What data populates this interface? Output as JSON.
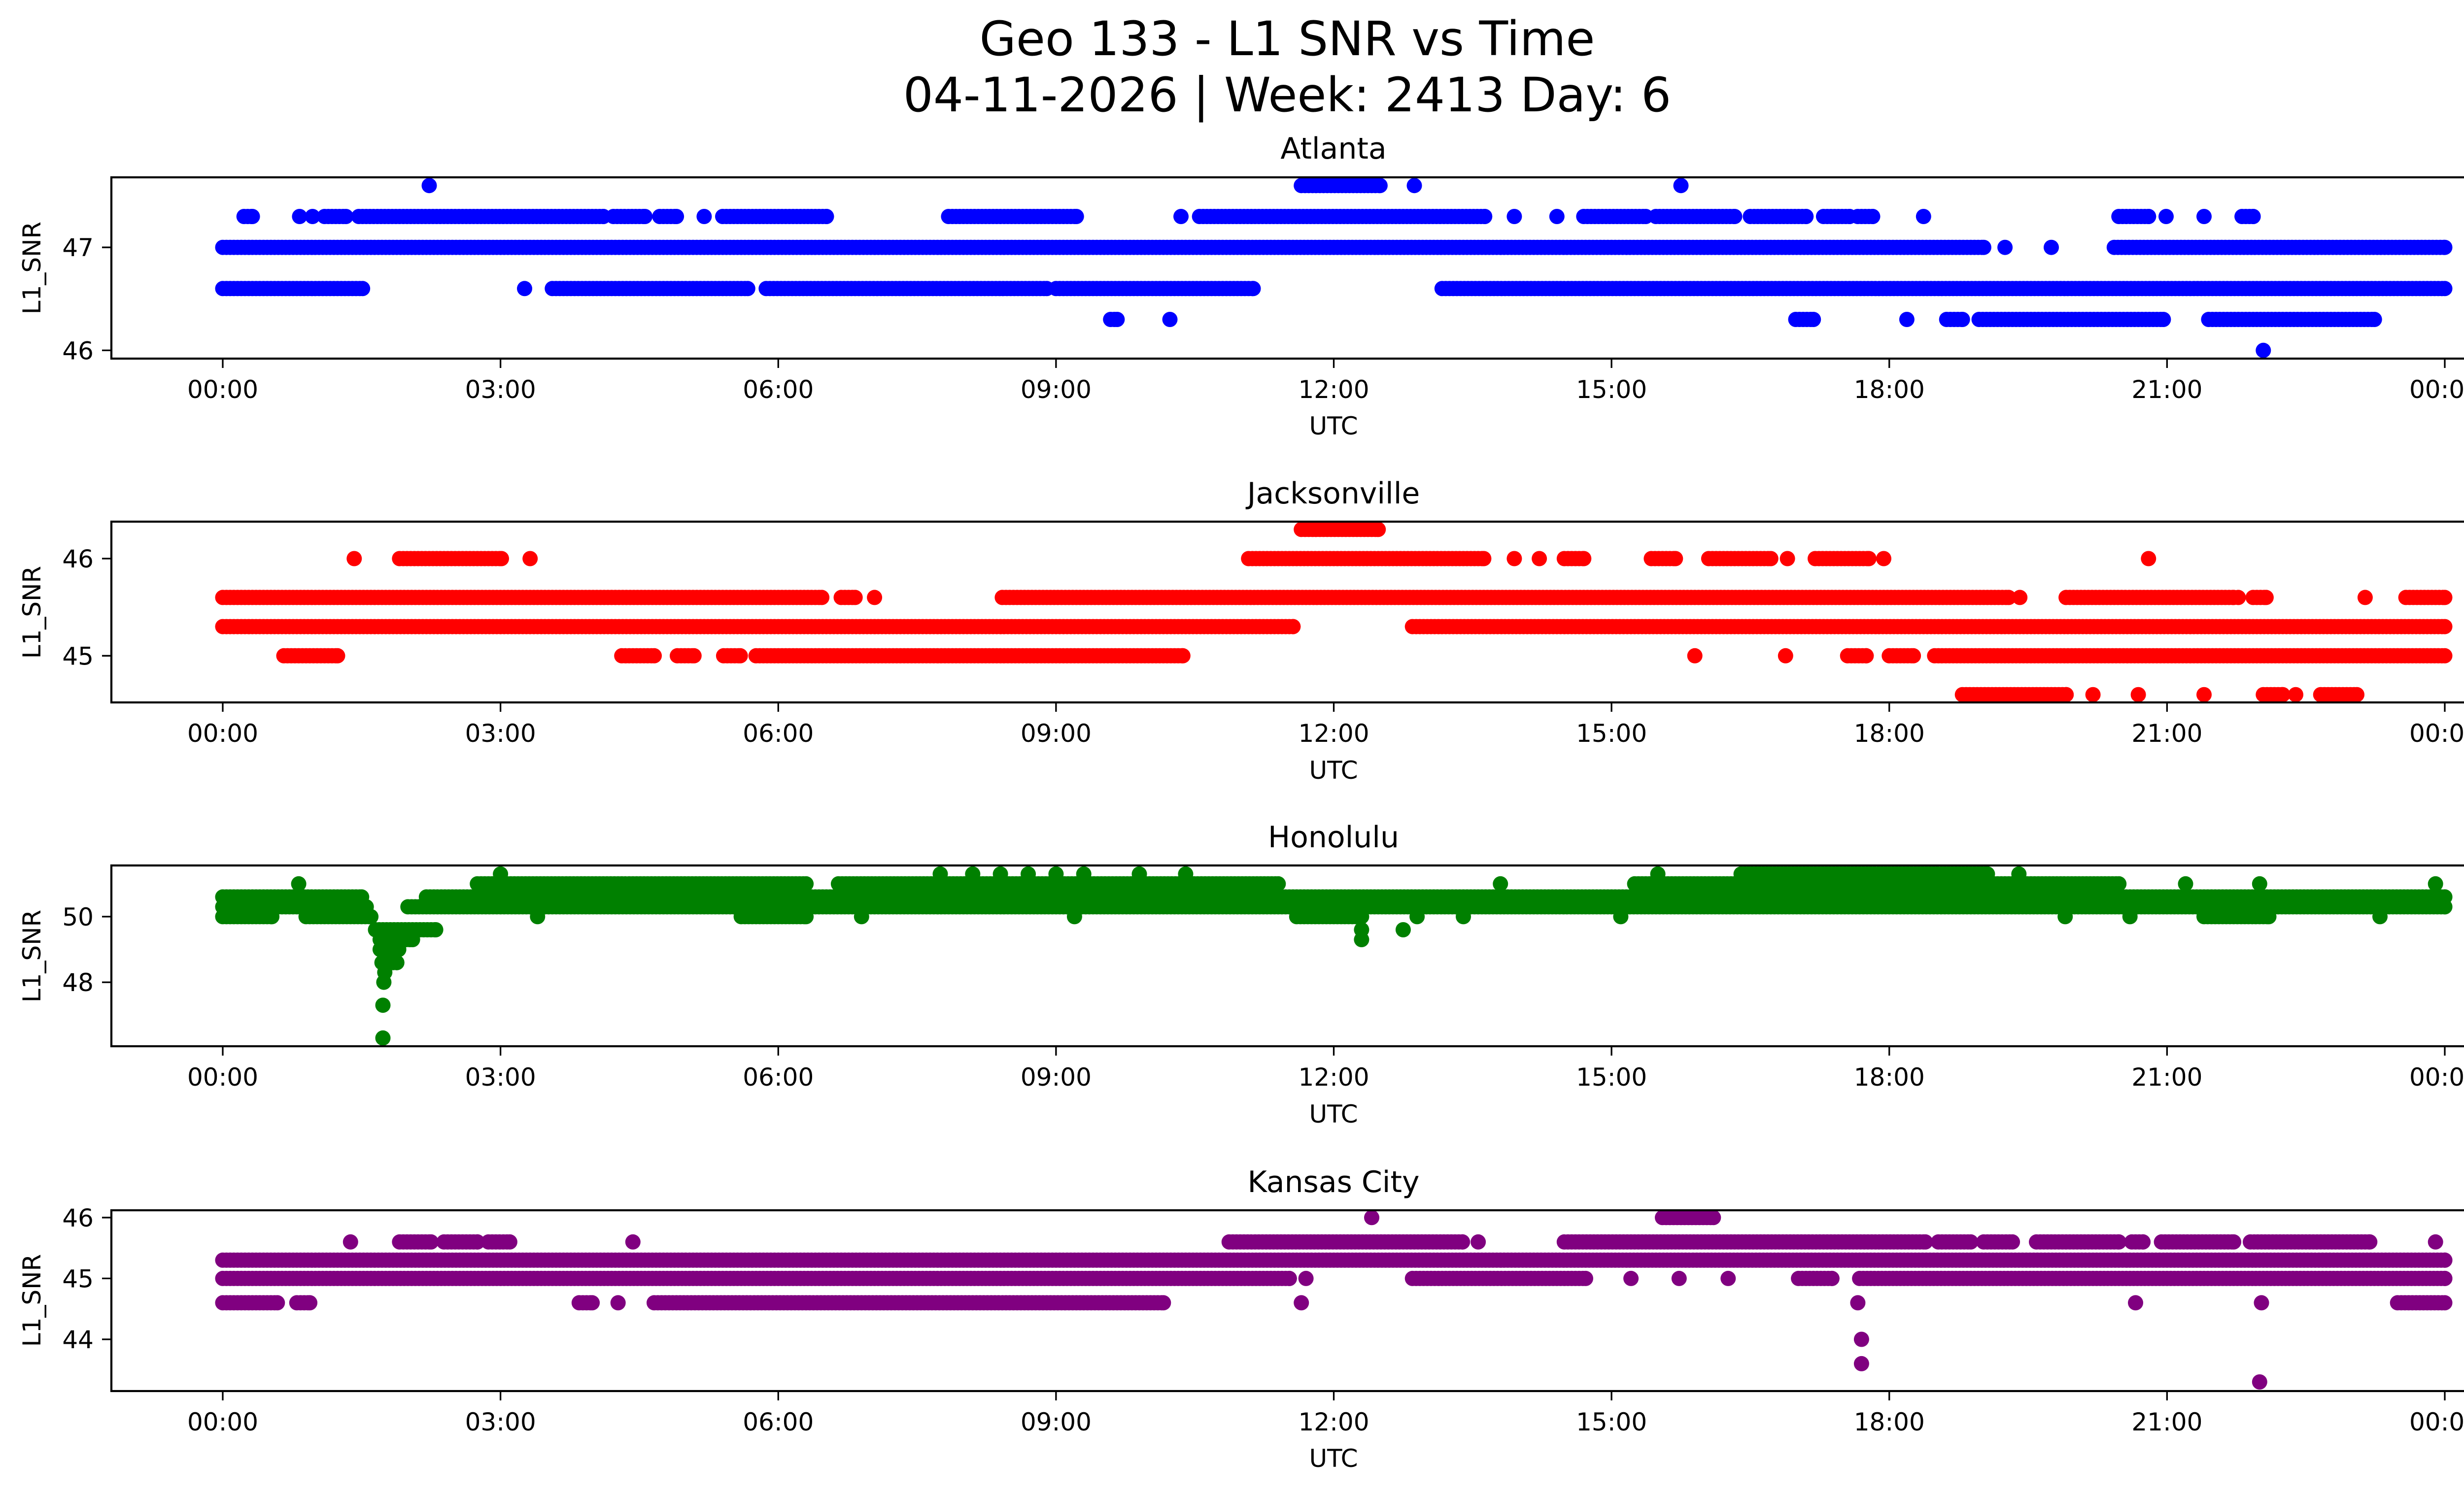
{
  "chart_data": {
    "type": "scatter",
    "title": "Geo 133 - L1 SNR vs Time",
    "subtitle": "04-11-2026 | Week: 2413 Day: 6",
    "xlabel": "UTC",
    "ylabel": "L1_SNR",
    "x_unit": "hours UTC",
    "xlim": [
      -1.2,
      25.2
    ],
    "x_ticks": [
      0,
      3,
      6,
      9,
      12,
      15,
      18,
      21,
      24
    ],
    "x_tick_labels": [
      "00:00",
      "03:00",
      "06:00",
      "09:00",
      "12:00",
      "15:00",
      "18:00",
      "21:00",
      "00:00"
    ],
    "grid": false,
    "legend": "none",
    "sample_step_hours": 0.04,
    "panels": [
      {
        "name": "Atlanta",
        "color": "#0000ff",
        "ylim": [
          45.92,
          47.68
        ],
        "y_ticks": [
          46,
          47
        ],
        "y_tick_labels": [
          "46",
          "47"
        ],
        "levels": [
          {
            "y": 47.6,
            "runs": [
              [
                11.65,
                12.5
              ]
            ],
            "points": [
              2.23,
              12.87,
              15.75
            ]
          },
          {
            "y": 47.3,
            "runs": [
              [
                0.23,
                0.32
              ],
              [
                1.1,
                1.33
              ],
              [
                1.47,
                4.11
              ],
              [
                4.22,
                4.56
              ],
              [
                4.72,
                4.9
              ],
              [
                5.4,
                6.52
              ],
              [
                7.84,
                9.22
              ],
              [
                10.55,
                13.63
              ],
              [
                14.7,
                15.37
              ],
              [
                15.48,
                16.33
              ],
              [
                16.5,
                17.1
              ],
              [
                17.29,
                17.57
              ],
              [
                17.66,
                17.82
              ],
              [
                20.48,
                20.8
              ],
              [
                21.81,
                21.93
              ]
            ],
            "points": [
              0.83,
              0.97,
              5.2,
              10.35,
              13.95,
              14.41,
              18.37,
              20.99,
              21.4
            ]
          },
          {
            "y": 47.0,
            "runs": [
              [
                0,
                19.02
              ],
              [
                20.43,
                24
              ]
            ],
            "points": [
              19.25,
              19.75
            ]
          },
          {
            "y": 46.6,
            "runs": [
              [
                0,
                1.51
              ],
              [
                3.56,
                5.67
              ],
              [
                5.87,
                8.9
              ],
              [
                9.0,
                11.13
              ],
              [
                13.17,
                24
              ]
            ],
            "points": [
              3.26
            ]
          },
          {
            "y": 46.3,
            "runs": [
              [
                9.59,
                9.66
              ],
              [
                16.99,
                17.18
              ],
              [
                18.62,
                18.79
              ],
              [
                18.97,
                20.96
              ],
              [
                21.45,
                23.24
              ]
            ],
            "points": [
              10.23,
              18.19
            ]
          },
          {
            "y": 46.0,
            "runs": [],
            "points": [
              22.04
            ]
          }
        ]
      },
      {
        "name": "Jacksonville",
        "color": "#ff0000",
        "ylim": [
          44.52,
          46.38
        ],
        "y_ticks": [
          45,
          46
        ],
        "y_tick_labels": [
          "45",
          "46"
        ],
        "levels": [
          {
            "y": 46.3,
            "runs": [
              [
                11.65,
                12.48
              ]
            ],
            "points": []
          },
          {
            "y": 46.0,
            "runs": [
              [
                1.91,
                3.01
              ],
              [
                11.08,
                13.62
              ],
              [
                14.49,
                14.7
              ],
              [
                15.43,
                15.69
              ],
              [
                16.05,
                16.72
              ],
              [
                17.2,
                17.78
              ]
            ],
            "points": [
              1.42,
              3.32,
              13.95,
              14.22,
              16.9,
              17.94,
              20.8
            ]
          },
          {
            "y": 45.6,
            "runs": [
              [
                0,
                6.47
              ],
              [
                6.68,
                6.83
              ],
              [
                8.42,
                19.29
              ],
              [
                19.91,
                21.72
              ],
              [
                21.93,
                22.07
              ],
              [
                23.58,
                24
              ]
            ],
            "points": [
              7.04,
              19.41,
              21.77,
              23.14
            ]
          },
          {
            "y": 45.3,
            "runs": [
              [
                0,
                11.56
              ],
              [
                12.85,
                24
              ]
            ],
            "points": []
          },
          {
            "y": 45.0,
            "runs": [
              [
                0.66,
                1.24
              ],
              [
                4.31,
                4.66
              ],
              [
                4.91,
                5.09
              ],
              [
                5.41,
                5.59
              ],
              [
                5.76,
                10.37
              ],
              [
                17.55,
                17.75
              ],
              [
                18.0,
                18.26
              ],
              [
                18.49,
                24
              ]
            ],
            "points": [
              15.9,
              16.88
            ]
          },
          {
            "y": 44.6,
            "runs": [
              [
                18.79,
                19.91
              ],
              [
                22.04,
                22.25
              ],
              [
                22.66,
                23.05
              ]
            ],
            "points": [
              20.2,
              20.69,
              21.4,
              22.39
            ]
          }
        ]
      },
      {
        "name": "Honolulu",
        "color": "#008000",
        "ylim": [
          46.05,
          51.56
        ],
        "y_ticks": [
          48,
          50
        ],
        "y_tick_labels": [
          "48",
          "50"
        ],
        "levels": [
          {
            "y": 51.3,
            "runs": [
              [
                16.4,
                19.06
              ]
            ],
            "points": [
              3.0,
              7.75,
              8.1,
              8.4,
              8.7,
              9.0,
              9.3,
              9.9,
              10.4,
              15.5,
              19.4
            ]
          },
          {
            "y": 51.0,
            "runs": [
              [
                2.75,
                6.3
              ],
              [
                6.65,
                11.4
              ],
              [
                15.25,
                20.48
              ]
            ],
            "points": [
              0.82,
              13.8,
              21.2,
              22.0,
              23.9
            ]
          },
          {
            "y": 50.6,
            "runs": [
              [
                0,
                1.5
              ],
              [
                2.2,
                24
              ]
            ],
            "points": []
          },
          {
            "y": 50.3,
            "runs": [
              [
                0,
                1.55
              ],
              [
                2.0,
                24
              ]
            ],
            "points": []
          },
          {
            "y": 50.0,
            "runs": [
              [
                0,
                0.53
              ],
              [
                0.9,
                1.6
              ],
              [
                5.6,
                6.3
              ],
              [
                11.6,
                12.3
              ],
              [
                21.4,
                22.1
              ]
            ],
            "points": [
              3.4,
              6.9,
              9.2,
              12.9,
              13.4,
              15.1,
              19.9,
              20.6,
              23.3
            ]
          },
          {
            "y": 49.6,
            "runs": [
              [
                1.65,
                2.3
              ]
            ],
            "points": [
              12.3,
              12.75
            ]
          },
          {
            "y": 49.3,
            "runs": [
              [
                1.7,
                2.05
              ]
            ],
            "points": [
              12.3
            ]
          },
          {
            "y": 49.0,
            "runs": [
              [
                1.7,
                1.9
              ]
            ],
            "points": []
          },
          {
            "y": 48.6,
            "runs": [
              [
                1.72,
                1.88
              ]
            ],
            "points": []
          },
          {
            "y": 48.3,
            "runs": [],
            "points": [
              1.75
            ]
          },
          {
            "y": 48.0,
            "runs": [],
            "points": [
              1.74
            ]
          },
          {
            "y": 47.3,
            "runs": [],
            "points": [
              1.73
            ]
          },
          {
            "y": 46.3,
            "runs": [],
            "points": [
              1.73
            ]
          }
        ]
      },
      {
        "name": "Kansas City",
        "color": "#800080",
        "ylim": [
          43.15,
          46.12
        ],
        "y_ticks": [
          44,
          45,
          46
        ],
        "y_tick_labels": [
          "44",
          "45",
          "46"
        ],
        "levels": [
          {
            "y": 46.0,
            "runs": [
              [
                15.55,
                16.1
              ]
            ],
            "points": [
              12.41
            ]
          },
          {
            "y": 45.6,
            "runs": [
              [
                1.91,
                2.25
              ],
              [
                2.39,
                2.75
              ],
              [
                2.87,
                3.1
              ],
              [
                10.87,
                13.39
              ],
              [
                14.49,
                18.39
              ],
              [
                18.53,
                18.88
              ],
              [
                19.02,
                19.33
              ],
              [
                19.59,
                20.48
              ],
              [
                20.62,
                20.74
              ],
              [
                20.94,
                21.72
              ],
              [
                21.9,
                23.19
              ]
            ],
            "points": [
              1.38,
              4.43,
              13.56,
              23.9
            ]
          },
          {
            "y": 45.3,
            "runs": [
              [
                0,
                24
              ]
            ],
            "points": []
          },
          {
            "y": 45.0,
            "runs": [
              [
                0,
                11.52
              ],
              [
                12.85,
                14.72
              ],
              [
                17.02,
                17.38
              ],
              [
                17.68,
                24
              ]
            ],
            "points": [
              11.7,
              15.21,
              15.73,
              16.26
            ]
          },
          {
            "y": 44.6,
            "runs": [
              [
                0,
                0.59
              ],
              [
                0.8,
                0.94
              ],
              [
                3.85,
                3.99
              ],
              [
                4.66,
                10.16
              ],
              [
                23.49,
                24
              ]
            ],
            "points": [
              4.27,
              11.65,
              17.66,
              20.66,
              22.02
            ]
          },
          {
            "y": 44.0,
            "runs": [],
            "points": [
              17.7
            ]
          },
          {
            "y": 43.6,
            "runs": [],
            "points": [
              17.7
            ]
          },
          {
            "y": 43.3,
            "runs": [],
            "points": [
              22.0
            ]
          }
        ]
      }
    ]
  }
}
